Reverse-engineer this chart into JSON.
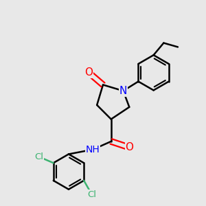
{
  "background_color": "#e8e8e8",
  "atom_colors": {
    "C": "#000000",
    "N": "#0000ff",
    "O": "#ff0000",
    "Cl": "#3cb371",
    "H": "#000000"
  },
  "bond_width": 1.8,
  "font_size_atom": 10,
  "fig_width": 3.0,
  "fig_height": 3.0,
  "dpi": 100
}
